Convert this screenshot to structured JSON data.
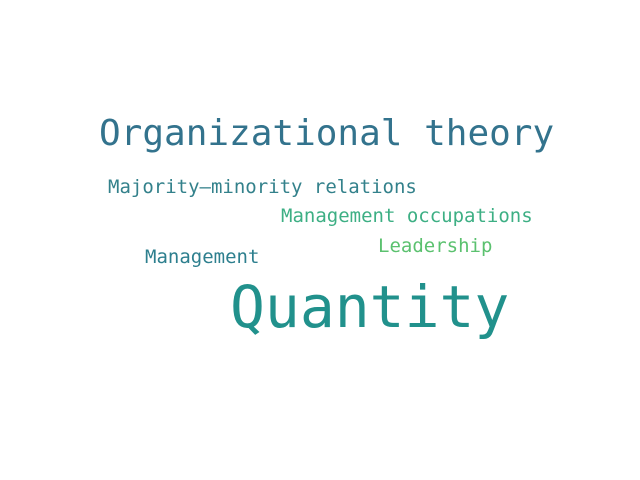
{
  "word_cloud": {
    "words": [
      {
        "text": "Organizational theory",
        "color": "#33738d"
      },
      {
        "text": "Majority–minority relations",
        "color": "#33818b"
      },
      {
        "text": "Management occupations",
        "color": "#3daf84"
      },
      {
        "text": "Leadership",
        "color": "#5bc16f"
      },
      {
        "text": "Management",
        "color": "#2d7f8e"
      },
      {
        "text": "Quantity",
        "color": "#21918c"
      }
    ]
  }
}
